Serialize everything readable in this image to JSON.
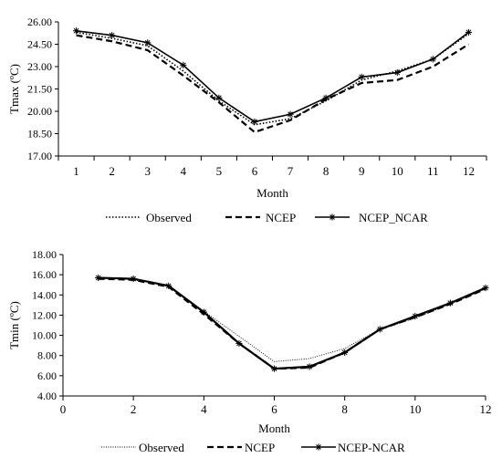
{
  "chart_data": [
    {
      "type": "line",
      "xlabel": "Month",
      "ylabel": "Tmax  (ºC)",
      "categories": [
        "1",
        "2",
        "3",
        "4",
        "5",
        "6",
        "7",
        "8",
        "9",
        "10",
        "11",
        "12"
      ],
      "ylim": [
        17.0,
        26.0
      ],
      "yticks": [
        "17.00",
        "18.50",
        "20.00",
        "21.50",
        "23.00",
        "24.50",
        "26.00"
      ],
      "grid": false,
      "legend_position": "bottom",
      "series": [
        {
          "name": "Observed",
          "style": "dotted",
          "values": [
            25.3,
            24.9,
            24.4,
            22.7,
            20.7,
            19.1,
            19.5,
            20.7,
            22.1,
            22.7,
            23.5,
            25.2
          ]
        },
        {
          "name": "NCEP",
          "style": "dashed",
          "values": [
            25.1,
            24.7,
            24.1,
            22.4,
            20.6,
            18.6,
            19.4,
            20.8,
            21.9,
            22.1,
            23.0,
            24.5
          ]
        },
        {
          "name": "NCEP_NCAR",
          "style": "solid-star",
          "values": [
            25.4,
            25.1,
            24.6,
            23.1,
            20.9,
            19.3,
            19.8,
            20.9,
            22.3,
            22.6,
            23.5,
            25.3
          ]
        }
      ]
    },
    {
      "type": "line",
      "xlabel": "Month",
      "ylabel": "Tmin  (ºC)",
      "xlim": [
        0,
        12
      ],
      "xticks": [
        "0",
        "2",
        "4",
        "6",
        "8",
        "10",
        "12"
      ],
      "ylim": [
        4.0,
        18.0
      ],
      "yticks": [
        "4.00",
        "6.00",
        "8.00",
        "10.00",
        "12.00",
        "14.00",
        "16.00",
        "18.00"
      ],
      "grid": false,
      "legend_position": "bottom",
      "x": [
        1,
        2,
        3,
        4,
        5,
        6,
        7,
        8,
        9,
        10,
        11,
        12
      ],
      "series": [
        {
          "name": "Observed",
          "style": "dotted-thin",
          "values": [
            15.7,
            15.5,
            14.9,
            12.4,
            9.9,
            7.4,
            7.7,
            8.7,
            10.6,
            11.7,
            13.1,
            14.6
          ]
        },
        {
          "name": "NCEP",
          "style": "dashed",
          "values": [
            15.6,
            15.5,
            14.8,
            12.1,
            9.2,
            6.7,
            6.8,
            8.3,
            10.6,
            11.8,
            13.1,
            14.6
          ]
        },
        {
          "name": "NCEP-NCAR",
          "style": "solid-star",
          "values": [
            15.7,
            15.6,
            14.9,
            12.3,
            9.2,
            6.7,
            6.9,
            8.3,
            10.6,
            11.9,
            13.2,
            14.7
          ]
        }
      ]
    }
  ]
}
